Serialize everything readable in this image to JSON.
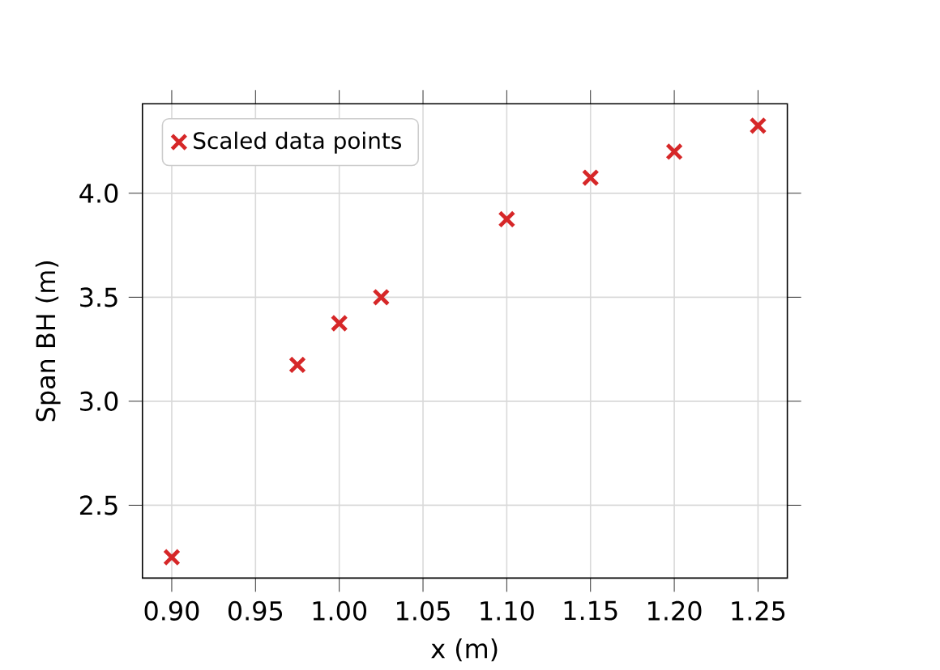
{
  "chart_data": {
    "type": "scatter",
    "xlabel": "x (m)",
    "ylabel": "Span BH (m)",
    "x": [
      0.9,
      0.975,
      1.0,
      1.025,
      1.1,
      1.15,
      1.2,
      1.25
    ],
    "series": [
      {
        "name": "Scaled data points",
        "color": "#d62728",
        "values": [
          2.25,
          3.175,
          3.375,
          3.5,
          3.875,
          4.075,
          4.2,
          4.325
        ]
      }
    ],
    "xlim": [
      0.8825,
      1.2675
    ],
    "ylim": [
      2.15,
      4.43
    ],
    "xticks": [
      {
        "value": 0.9,
        "label": "0.90"
      },
      {
        "value": 0.95,
        "label": "0.95"
      },
      {
        "value": 1.0,
        "label": "1.00"
      },
      {
        "value": 1.05,
        "label": "1.05"
      },
      {
        "value": 1.1,
        "label": "1.10"
      },
      {
        "value": 1.15,
        "label": "1.15"
      },
      {
        "value": 1.2,
        "label": "1.20"
      },
      {
        "value": 1.25,
        "label": "1.25"
      }
    ],
    "yticks": [
      2.5,
      {
        "value": 3.0,
        "label": "3.0"
      },
      3.5,
      {
        "value": 4.0,
        "label": "4.0"
      }
    ],
    "grid": true,
    "legend": "top left",
    "marker": "cross"
  }
}
